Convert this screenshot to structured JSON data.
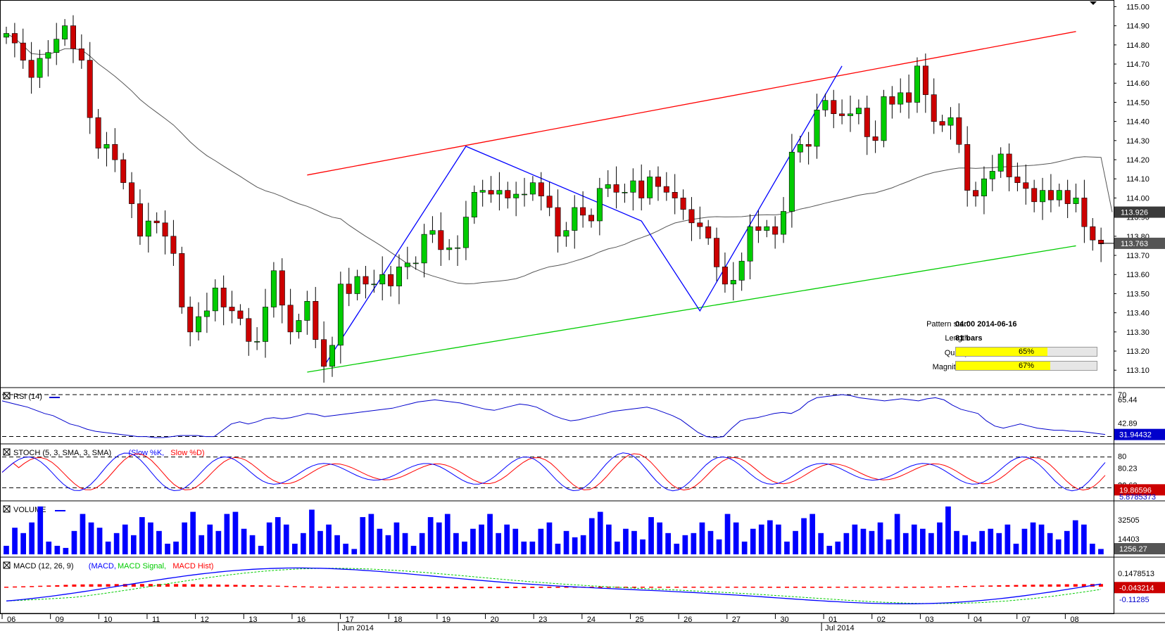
{
  "chart_data": {
    "type": "candlestick",
    "instrument_timeframe": "4H",
    "price_axis": {
      "ticks": [
        "115.00",
        "114.90",
        "114.80",
        "114.70",
        "114.60",
        "114.50",
        "114.40",
        "114.30",
        "114.20",
        "114.10",
        "114.00",
        "113.90",
        "113.80",
        "113.70",
        "113.60",
        "113.50",
        "113.40",
        "113.30",
        "113.20",
        "113.10"
      ],
      "ylim": [
        113.02,
        115.02
      ],
      "last_price": "113.763",
      "ma_price": "113.926"
    },
    "x_axis": {
      "days": [
        "06",
        "09",
        "10",
        "11",
        "12",
        "13",
        "16",
        "17",
        "18",
        "19",
        "20",
        "23",
        "24",
        "25",
        "26",
        "27",
        "30",
        "01",
        "02",
        "03",
        "04",
        "07",
        "08"
      ],
      "months": [
        "Jun 2014",
        "Jul 2014"
      ]
    },
    "candles": [
      [
        114.84,
        114.86
      ],
      [
        114.86,
        114.81
      ],
      [
        114.81,
        114.72
      ],
      [
        114.72,
        114.63
      ],
      [
        114.63,
        114.73
      ],
      [
        114.73,
        114.76
      ],
      [
        114.76,
        114.83
      ],
      [
        114.83,
        114.9
      ],
      [
        114.9,
        114.78
      ],
      [
        114.78,
        114.72
      ],
      [
        114.72,
        114.42
      ],
      [
        114.42,
        114.26
      ],
      [
        114.26,
        114.28
      ],
      [
        114.28,
        114.2
      ],
      [
        114.2,
        114.08
      ],
      [
        114.08,
        113.97
      ],
      [
        113.97,
        113.8
      ],
      [
        113.8,
        113.88
      ],
      [
        113.88,
        113.87
      ],
      [
        113.87,
        113.8
      ],
      [
        113.8,
        113.71
      ],
      [
        113.71,
        113.43
      ],
      [
        113.43,
        113.3
      ],
      [
        113.3,
        113.38
      ],
      [
        113.38,
        113.41
      ],
      [
        113.41,
        113.53
      ],
      [
        113.53,
        113.43
      ],
      [
        113.43,
        113.41
      ],
      [
        113.41,
        113.37
      ],
      [
        113.37,
        113.25
      ],
      [
        113.25,
        113.25
      ],
      [
        113.25,
        113.43
      ],
      [
        113.43,
        113.62
      ],
      [
        113.62,
        113.44
      ],
      [
        113.44,
        113.3
      ],
      [
        113.3,
        113.36
      ],
      [
        113.36,
        113.46
      ],
      [
        113.46,
        113.26
      ],
      [
        113.26,
        113.12
      ],
      [
        113.12,
        113.23
      ],
      [
        113.23,
        113.55
      ],
      [
        113.55,
        113.5
      ],
      [
        113.5,
        113.59
      ],
      [
        113.59,
        113.55
      ],
      [
        113.55,
        113.55
      ],
      [
        113.55,
        113.6
      ],
      [
        113.6,
        113.54
      ],
      [
        113.54,
        113.64
      ],
      [
        113.64,
        113.66
      ],
      [
        113.66,
        113.66
      ],
      [
        113.66,
        113.81
      ],
      [
        113.81,
        113.83
      ],
      [
        113.83,
        113.73
      ],
      [
        113.73,
        113.74
      ],
      [
        113.74,
        113.74
      ],
      [
        113.74,
        113.9
      ],
      [
        113.9,
        114.03
      ],
      [
        114.03,
        114.04
      ],
      [
        114.04,
        114.02
      ],
      [
        114.02,
        114.04
      ],
      [
        114.04,
        114.0
      ],
      [
        114.0,
        114.02
      ],
      [
        114.02,
        114.02
      ],
      [
        114.02,
        114.08
      ],
      [
        114.08,
        114.01
      ],
      [
        114.01,
        113.95
      ],
      [
        113.95,
        113.8
      ],
      [
        113.8,
        113.83
      ],
      [
        113.83,
        113.95
      ],
      [
        113.95,
        113.91
      ],
      [
        113.91,
        113.88
      ],
      [
        113.88,
        114.05
      ],
      [
        114.05,
        114.07
      ],
      [
        114.07,
        114.03
      ],
      [
        114.03,
        114.03
      ],
      [
        114.03,
        114.09
      ],
      [
        114.09,
        114.0
      ],
      [
        114.0,
        114.11
      ],
      [
        114.11,
        114.06
      ],
      [
        114.06,
        114.03
      ],
      [
        114.03,
        114.0
      ],
      [
        114.0,
        113.94
      ],
      [
        113.94,
        113.87
      ],
      [
        113.87,
        113.85
      ],
      [
        113.85,
        113.79
      ],
      [
        113.79,
        113.64
      ],
      [
        113.64,
        113.55
      ],
      [
        113.55,
        113.57
      ],
      [
        113.57,
        113.67
      ],
      [
        113.67,
        113.85
      ],
      [
        113.85,
        113.83
      ],
      [
        113.83,
        113.85
      ],
      [
        113.85,
        113.81
      ],
      [
        113.81,
        113.93
      ],
      [
        113.93,
        114.24
      ],
      [
        114.24,
        114.28
      ],
      [
        114.28,
        114.27
      ],
      [
        114.27,
        114.46
      ],
      [
        114.46,
        114.51
      ],
      [
        114.51,
        114.44
      ],
      [
        114.44,
        114.43
      ],
      [
        114.43,
        114.44
      ],
      [
        114.44,
        114.47
      ],
      [
        114.47,
        114.32
      ],
      [
        114.32,
        114.3
      ],
      [
        114.3,
        114.53
      ],
      [
        114.53,
        114.49
      ],
      [
        114.49,
        114.55
      ],
      [
        114.55,
        114.5
      ],
      [
        114.5,
        114.69
      ],
      [
        114.69,
        114.54
      ],
      [
        114.54,
        114.4
      ],
      [
        114.4,
        114.38
      ],
      [
        114.38,
        114.42
      ],
      [
        114.42,
        114.28
      ],
      [
        114.28,
        114.04
      ],
      [
        114.04,
        114.01
      ],
      [
        114.01,
        114.1
      ],
      [
        114.1,
        114.14
      ],
      [
        114.14,
        114.23
      ],
      [
        114.23,
        114.11
      ],
      [
        114.11,
        114.08
      ],
      [
        114.08,
        114.05
      ],
      [
        114.05,
        113.98
      ],
      [
        113.98,
        114.04
      ],
      [
        114.04,
        113.99
      ],
      [
        113.99,
        114.04
      ],
      [
        114.04,
        113.97
      ],
      [
        113.97,
        114.0
      ],
      [
        114.0,
        113.85
      ],
      [
        113.85,
        113.78
      ],
      [
        113.78,
        113.76
      ]
    ],
    "pattern": {
      "zigzag": [
        [
          38,
          113.12
        ],
        [
          55,
          114.27
        ],
        [
          76,
          113.88
        ],
        [
          83,
          113.41
        ],
        [
          100,
          114.69
        ]
      ],
      "upper_line": [
        [
          36,
          114.12
        ],
        [
          128,
          114.87
        ]
      ],
      "lower_line": [
        [
          36,
          113.09
        ],
        [
          128,
          113.75
        ]
      ]
    },
    "pattern_info": {
      "start_label": "Pattern start",
      "start_value": "04:00 2014-06-16",
      "length_label": "Length",
      "length_value": "81 bars",
      "quality_label": "Quality",
      "quality_value": "65%",
      "quality_pct": 65,
      "magnitude_label": "Magnitude",
      "magnitude_value": "67%",
      "magnitude_pct": 67
    },
    "rsi": {
      "label": "RSI (14)",
      "ticks": [
        "70",
        "65.44",
        "42.89",
        "30"
      ],
      "last": "31.94432",
      "levels": [
        70,
        30
      ],
      "ylim": [
        25,
        74
      ],
      "values": [
        64,
        62,
        60,
        58,
        55,
        52,
        50,
        46,
        42,
        40,
        37,
        35,
        34,
        33,
        32,
        31,
        30,
        30,
        29,
        29,
        30,
        31,
        31,
        31,
        30,
        30,
        36,
        42,
        44,
        42,
        44,
        47,
        48,
        47,
        48,
        50,
        52,
        51,
        49,
        50,
        51,
        52,
        53,
        54,
        55,
        56,
        57,
        59,
        61,
        63,
        64,
        65,
        64,
        63,
        62,
        60,
        58,
        56,
        55,
        57,
        59,
        61,
        60,
        58,
        54,
        50,
        47,
        45,
        46,
        48,
        50,
        52,
        54,
        55,
        56,
        57,
        58,
        56,
        53,
        50,
        46,
        40,
        34,
        30,
        29,
        30,
        38,
        45,
        47,
        48,
        50,
        52,
        53,
        52,
        56,
        63,
        67,
        68,
        69,
        70,
        69,
        67,
        66,
        65,
        64,
        65,
        66,
        65,
        64,
        66,
        67,
        65,
        60,
        56,
        54,
        52,
        45,
        40,
        38,
        40,
        42,
        40,
        38,
        37,
        36,
        36,
        35,
        35,
        34,
        33,
        32
      ]
    },
    "stoch": {
      "label": "STOCH (5, 3, SMA, 3, SMA)",
      "k_name": "Slow %K",
      "d_name": "Slow %D",
      "ticks": [
        "80",
        "80.23",
        "36.62",
        "20"
      ],
      "last_d": "19.86596",
      "last_k": "5.8785373",
      "levels": [
        80,
        20
      ],
      "ylim": [
        0,
        100
      ]
    },
    "volume": {
      "label": "VOLUME",
      "ticks": [
        "32505",
        "14403"
      ],
      "last": "1256.27",
      "ylim": [
        0,
        45000
      ],
      "values": [
        8,
        25,
        20,
        30,
        45,
        12,
        8,
        6,
        22,
        38,
        30,
        25,
        12,
        20,
        28,
        18,
        35,
        30,
        22,
        10,
        12,
        30,
        40,
        18,
        28,
        22,
        38,
        40,
        24,
        18,
        8,
        30,
        35,
        28,
        10,
        20,
        42,
        22,
        28,
        18,
        10,
        5,
        35,
        38,
        24,
        18,
        30,
        20,
        8,
        20,
        35,
        30,
        38,
        20,
        12,
        24,
        28,
        38,
        20,
        28,
        24,
        12,
        12,
        24,
        30,
        10,
        22,
        16,
        18,
        34,
        40,
        28,
        12,
        24,
        22,
        14,
        35,
        30,
        20,
        10,
        18,
        20,
        30,
        22,
        14,
        38,
        30,
        12,
        24,
        28,
        32,
        28,
        12,
        22,
        34,
        38,
        20,
        8,
        12,
        20,
        28,
        24,
        22,
        30,
        14,
        38,
        20,
        28,
        24,
        20,
        30,
        45,
        22,
        18,
        12,
        22,
        24,
        20,
        28,
        10,
        24,
        30,
        28,
        20,
        14,
        22,
        32,
        28,
        10,
        5
      ]
    },
    "macd": {
      "label": "MACD (12, 26, 9)",
      "macd_name": "MACD",
      "signal_name": "MACD Signal",
      "hist_name": "MACD Hist",
      "ticks": [
        "0.1478513",
        "-0.043214",
        "-0.11285"
      ],
      "last": "-0.043214",
      "ylim": [
        -0.3,
        0.3
      ]
    },
    "colors": {
      "bull": "#00cc00",
      "bear": "#cc0000",
      "ma": "#000000",
      "zigzag": "#0000ff",
      "upper": "#ff0000",
      "lower": "#00cc00",
      "rsi": "#0000cc",
      "stoch_k": "#0000ff",
      "stoch_d": "#ff0000",
      "volume": "#0000ff",
      "macd": "#0000ff",
      "signal": "#00cc00",
      "hist": "#ff0000"
    }
  }
}
